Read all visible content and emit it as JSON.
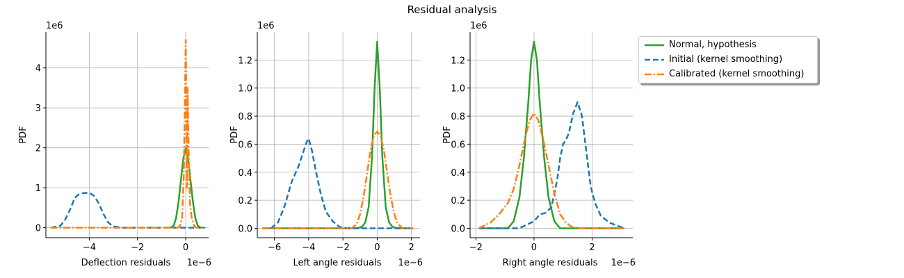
{
  "figure": {
    "title": "Residual analysis"
  },
  "legend": {
    "items": [
      {
        "label": "Normal, hypothesis",
        "color": "#2ca02c",
        "style": "solid"
      },
      {
        "label": "Initial (kernel smoothing)",
        "color": "#1f77b4",
        "style": "dashed"
      },
      {
        "label": "Calibrated (kernel smoothing)",
        "color": "#ff7f0e",
        "style": "dashdot"
      }
    ]
  },
  "chart_data": [
    {
      "type": "line",
      "xlabel": "Deflection residuals",
      "ylabel": "PDF",
      "x_scale_label": "1e−6",
      "y_scale_label": "1e6",
      "xlim": [
        -5.8,
        0.95
      ],
      "ylim": [
        -0.25,
        4.9
      ],
      "xticks": [
        -4,
        -2,
        0
      ],
      "xtick_labels": [
        "−4",
        "−2",
        "0"
      ],
      "yticks": [
        0,
        1,
        2,
        3,
        4
      ],
      "ytick_labels": [
        "0",
        "1",
        "2",
        "3",
        "4"
      ],
      "grid": true,
      "series": [
        {
          "name": "Normal, hypothesis",
          "color": "#2ca02c",
          "style": "solid",
          "x": [
            -0.8,
            -0.6,
            -0.5,
            -0.4,
            -0.3,
            -0.2,
            -0.1,
            0,
            0.1,
            0.2,
            0.3,
            0.4,
            0.5,
            0.6,
            0.8
          ],
          "y": [
            0,
            0.01,
            0.05,
            0.24,
            0.64,
            1.18,
            1.73,
            1.99,
            1.73,
            1.18,
            0.64,
            0.24,
            0.05,
            0.01,
            0
          ]
        },
        {
          "name": "Initial (kernel smoothing)",
          "color": "#1f77b4",
          "style": "dashed",
          "x": [
            -5.6,
            -5.2,
            -5.0,
            -4.8,
            -4.6,
            -4.4,
            -4.2,
            -4.0,
            -3.8,
            -3.6,
            -3.4,
            -3.2,
            -3.0,
            -2.6,
            -2.0,
            0.0,
            0.7
          ],
          "y": [
            0,
            0.05,
            0.2,
            0.45,
            0.75,
            0.85,
            0.87,
            0.87,
            0.8,
            0.6,
            0.33,
            0.12,
            0.03,
            0,
            0,
            0,
            0
          ]
        },
        {
          "name": "Calibrated (kernel smoothing)",
          "color": "#ff7f0e",
          "style": "dashdot",
          "x": [
            -5.6,
            -1.0,
            -0.35,
            -0.25,
            -0.15,
            -0.08,
            -0.04,
            0.0,
            0.02,
            0.05,
            0.08,
            0.12,
            0.18,
            0.25,
            0.35,
            0.45,
            0.7
          ],
          "y": [
            0,
            0,
            0,
            0.02,
            0.25,
            1.3,
            3.0,
            4.7,
            3.8,
            1.0,
            3.5,
            2.0,
            0.6,
            0.25,
            0.05,
            0,
            0
          ]
        }
      ]
    },
    {
      "type": "line",
      "xlabel": "Left angle residuals",
      "ylabel": "PDF",
      "x_scale_label": "1e−6",
      "y_scale_label": "1e6",
      "xlim": [
        -7.0,
        2.5
      ],
      "ylim": [
        -0.067,
        1.4
      ],
      "xticks": [
        -6,
        -4,
        -2,
        0,
        2
      ],
      "xtick_labels": [
        "−6",
        "−4",
        "−2",
        "0",
        "2"
      ],
      "yticks": [
        0,
        0.2,
        0.4,
        0.6,
        0.8,
        1.0,
        1.2
      ],
      "ytick_labels": [
        "0.0",
        "0.2",
        "0.4",
        "0.6",
        "0.8",
        "1.0",
        "1.2"
      ],
      "grid": true,
      "series": [
        {
          "name": "Normal, hypothesis",
          "color": "#2ca02c",
          "style": "solid",
          "x": [
            -6.7,
            -1.2,
            -0.9,
            -0.7,
            -0.5,
            -0.3,
            -0.15,
            0,
            0.15,
            0.3,
            0.5,
            0.7,
            0.9,
            1.2,
            2.1
          ],
          "y": [
            0,
            0,
            0.01,
            0.04,
            0.15,
            0.51,
            1.0,
            1.33,
            1.0,
            0.51,
            0.15,
            0.04,
            0.01,
            0,
            0
          ]
        },
        {
          "name": "Initial (kernel smoothing)",
          "color": "#1f77b4",
          "style": "dashed",
          "x": [
            -6.7,
            -6.2,
            -5.8,
            -5.4,
            -5.0,
            -4.6,
            -4.3,
            -4.1,
            -4.0,
            -3.8,
            -3.6,
            -3.3,
            -3.0,
            -2.6,
            -2.2,
            -1.8,
            0,
            2.1
          ],
          "y": [
            0,
            0,
            0.04,
            0.16,
            0.33,
            0.44,
            0.55,
            0.62,
            0.64,
            0.55,
            0.42,
            0.25,
            0.12,
            0.05,
            0.01,
            0,
            0,
            0
          ]
        },
        {
          "name": "Calibrated (kernel smoothing)",
          "color": "#ff7f0e",
          "style": "dashdot",
          "x": [
            -6.7,
            -1.5,
            -1.2,
            -1.0,
            -0.8,
            -0.6,
            -0.4,
            -0.2,
            0,
            0.2,
            0.4,
            0.6,
            0.8,
            1.0,
            1.2,
            1.5,
            2.1
          ],
          "y": [
            0,
            0,
            0.03,
            0.1,
            0.22,
            0.38,
            0.55,
            0.66,
            0.69,
            0.66,
            0.55,
            0.38,
            0.22,
            0.1,
            0.03,
            0,
            0
          ]
        }
      ]
    },
    {
      "type": "line",
      "xlabel": "Right angle residuals",
      "ylabel": "PDF",
      "x_scale_label": "1e−6",
      "y_scale_label": "1e6",
      "xlim": [
        -2.2,
        3.4
      ],
      "ylim": [
        -0.067,
        1.4
      ],
      "xticks": [
        -2,
        0,
        2
      ],
      "xtick_labels": [
        "−2",
        "0",
        "2"
      ],
      "yticks": [
        0,
        0.2,
        0.4,
        0.6,
        0.8,
        1.0,
        1.2
      ],
      "ytick_labels": [
        "0.0",
        "0.2",
        "0.4",
        "0.6",
        "0.8",
        "1.0",
        "1.2"
      ],
      "grid": true,
      "series": [
        {
          "name": "Normal, hypothesis",
          "color": "#2ca02c",
          "style": "solid",
          "x": [
            -1.9,
            -0.9,
            -0.7,
            -0.5,
            -0.35,
            -0.2,
            -0.1,
            0,
            0.1,
            0.2,
            0.35,
            0.5,
            0.7,
            0.9,
            3.1
          ],
          "y": [
            0,
            0,
            0.05,
            0.22,
            0.5,
            0.89,
            1.2,
            1.33,
            1.2,
            0.89,
            0.5,
            0.22,
            0.05,
            0,
            0
          ]
        },
        {
          "name": "Initial (kernel smoothing)",
          "color": "#1f77b4",
          "style": "dashed",
          "x": [
            -1.9,
            -0.6,
            -0.4,
            -0.2,
            0,
            0.2,
            0.4,
            0.6,
            0.8,
            0.9,
            1.0,
            1.1,
            1.2,
            1.35,
            1.5,
            1.65,
            1.8,
            1.95,
            2.1,
            2.3,
            2.6,
            3.1
          ],
          "y": [
            0,
            0,
            0.01,
            0.03,
            0.05,
            0.1,
            0.11,
            0.15,
            0.35,
            0.5,
            0.6,
            0.63,
            0.68,
            0.82,
            0.9,
            0.8,
            0.55,
            0.3,
            0.18,
            0.09,
            0.04,
            0
          ]
        },
        {
          "name": "Calibrated (kernel smoothing)",
          "color": "#ff7f0e",
          "style": "dashdot",
          "x": [
            -1.9,
            -1.5,
            -1.2,
            -0.9,
            -0.7,
            -0.5,
            -0.3,
            -0.15,
            0,
            0.15,
            0.3,
            0.5,
            0.7,
            0.9,
            1.1,
            1.3,
            1.6,
            3.1
          ],
          "y": [
            0,
            0.04,
            0.1,
            0.18,
            0.28,
            0.45,
            0.65,
            0.77,
            0.82,
            0.77,
            0.65,
            0.45,
            0.25,
            0.1,
            0.04,
            0.01,
            0,
            0
          ]
        }
      ]
    }
  ]
}
